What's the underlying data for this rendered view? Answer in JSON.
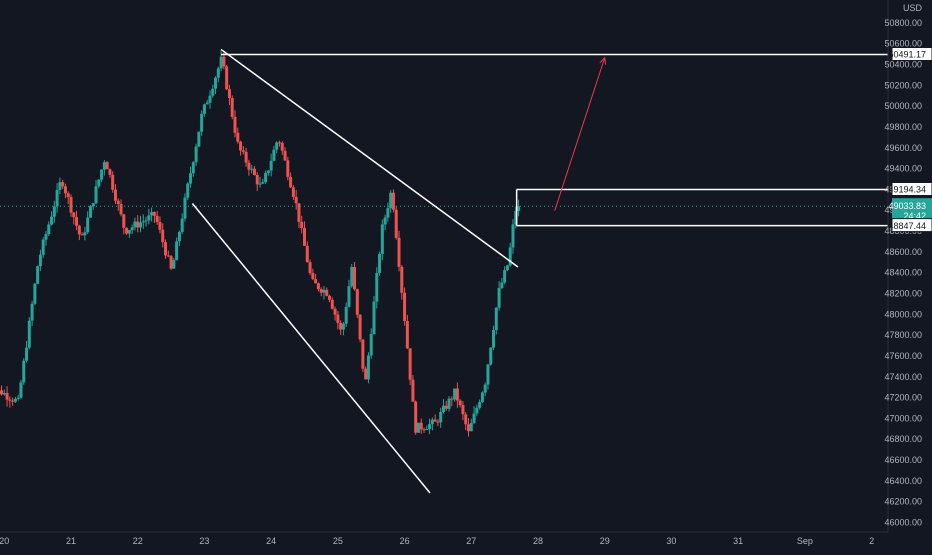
{
  "chart_data": {
    "type": "candlestick",
    "currency": "USD",
    "price_axis": {
      "min": 46000,
      "max": 51000,
      "ticks": [
        46000,
        46200,
        46400,
        46600,
        46800,
        47000,
        47200,
        47400,
        47600,
        47800,
        48000,
        48200,
        48400,
        48600,
        48800,
        49000,
        49200,
        49400,
        49600,
        49800,
        50000,
        50200,
        50400,
        50600,
        50800,
        51000
      ],
      "tick_labels": [
        "46000.00",
        "46200.00",
        "46400.00",
        "46600.00",
        "46800.00",
        "47000.00",
        "47200.00",
        "47400.00",
        "47600.00",
        "47800.00",
        "48000.00",
        "48200.00",
        "48400.00",
        "48600.00",
        "48800.00",
        "49000.00",
        "49200.00",
        "49400.00",
        "49600.00",
        "49800.00",
        "50000.00",
        "50200.00",
        "50400.00",
        "50600.00",
        "50800.00",
        "51000.00"
      ]
    },
    "time_axis": {
      "labels": [
        "20",
        "21",
        "22",
        "23",
        "24",
        "25",
        "26",
        "27",
        "28",
        "29",
        "30",
        "31",
        "Sep",
        "2"
      ],
      "range_days": [
        19.95,
        32.0
      ]
    },
    "price_labels": [
      {
        "text": "50491.17",
        "value": 50491.17
      },
      {
        "text": "49194.34",
        "value": 49194.34
      },
      {
        "text": "49033.83",
        "value": 49033.83,
        "countdown": "24:42",
        "current": true
      },
      {
        "text": "48847.44",
        "value": 48847.44
      }
    ],
    "key_points": [
      {
        "day": 20.0,
        "price": 47250
      },
      {
        "day": 20.25,
        "price": 47150
      },
      {
        "day": 20.55,
        "price": 48500
      },
      {
        "day": 20.9,
        "price": 49300
      },
      {
        "day": 21.2,
        "price": 48700
      },
      {
        "day": 21.55,
        "price": 49500
      },
      {
        "day": 21.85,
        "price": 48800
      },
      {
        "day": 22.3,
        "price": 48950
      },
      {
        "day": 22.55,
        "price": 48400
      },
      {
        "day": 22.8,
        "price": 49250
      },
      {
        "day": 23.0,
        "price": 49900
      },
      {
        "day": 23.3,
        "price": 50450
      },
      {
        "day": 23.55,
        "price": 49600
      },
      {
        "day": 23.9,
        "price": 49200
      },
      {
        "day": 24.15,
        "price": 49700
      },
      {
        "day": 24.4,
        "price": 49100
      },
      {
        "day": 24.65,
        "price": 48300
      },
      {
        "day": 24.9,
        "price": 48200
      },
      {
        "day": 25.1,
        "price": 47800
      },
      {
        "day": 25.25,
        "price": 48450
      },
      {
        "day": 25.45,
        "price": 47300
      },
      {
        "day": 25.7,
        "price": 48800
      },
      {
        "day": 25.85,
        "price": 49200
      },
      {
        "day": 26.05,
        "price": 47900
      },
      {
        "day": 26.2,
        "price": 46900
      },
      {
        "day": 26.5,
        "price": 46950
      },
      {
        "day": 26.8,
        "price": 47250
      },
      {
        "day": 27.0,
        "price": 46850
      },
      {
        "day": 27.25,
        "price": 47350
      },
      {
        "day": 27.45,
        "price": 48200
      },
      {
        "day": 27.6,
        "price": 48500
      },
      {
        "day": 27.7,
        "price": 49000
      }
    ],
    "drawings": {
      "horizontal_lines": [
        {
          "price": 50491.17,
          "from_day": 23.25
        },
        {
          "price": 49194.34,
          "from_day": 27.68
        },
        {
          "price": 48847.44,
          "from_day": 27.68
        }
      ],
      "trendlines": [
        {
          "from": {
            "day": 23.25,
            "price": 50540
          },
          "to": {
            "day": 27.7,
            "price": 48450
          }
        },
        {
          "from": {
            "day": 22.82,
            "price": 49060
          },
          "to": {
            "day": 26.38,
            "price": 46280
          }
        }
      ],
      "arrow": {
        "from": {
          "day": 28.25,
          "price": 48990
        },
        "to": {
          "day": 29.0,
          "price": 50460
        }
      }
    },
    "colors": {
      "background": "#131722",
      "up": "#26a69a",
      "down": "#ef5350",
      "axis_text": "#b2b5be",
      "drawing": "#ffffff",
      "arrow": "#f23645",
      "current_price_line": "#26a69a"
    },
    "grid": false
  }
}
